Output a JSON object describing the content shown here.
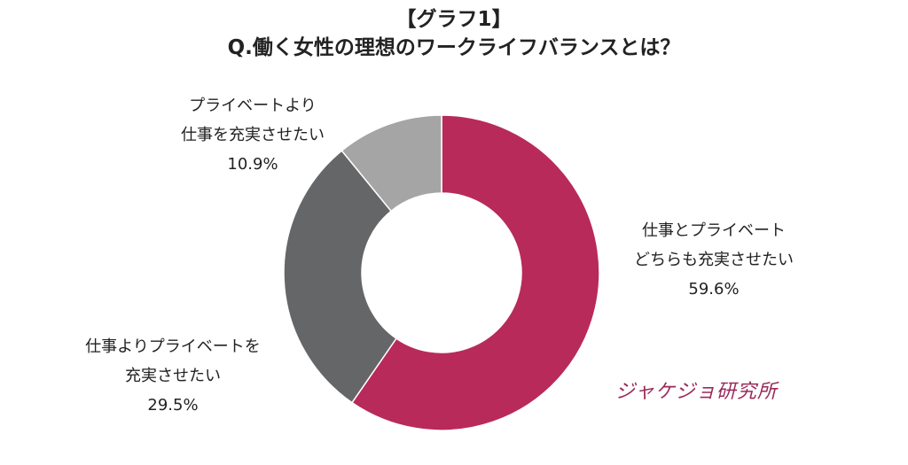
{
  "chart_data": {
    "type": "pie",
    "variant": "donut",
    "title": "【グラフ1】",
    "subtitle": "Q.働く女性の理想のワークライフバランスとは？",
    "slices": [
      {
        "label_lines": [
          "仕事とプライベート",
          "どちらも充実させたい"
        ],
        "value": 59.6,
        "value_label": "59.6%",
        "color": "#b82a5a"
      },
      {
        "label_lines": [
          "仕事よりプライベートを",
          "充実させたい"
        ],
        "value": 29.5,
        "value_label": "29.5%",
        "color": "#656668"
      },
      {
        "label_lines": [
          "プライベートより",
          "仕事を充実させたい"
        ],
        "value": 10.9,
        "value_label": "10.9%",
        "color": "#a5a5a5"
      }
    ],
    "start": "top",
    "direction": "clockwise"
  },
  "logo": {
    "text": "ジャケジョ研究所"
  }
}
